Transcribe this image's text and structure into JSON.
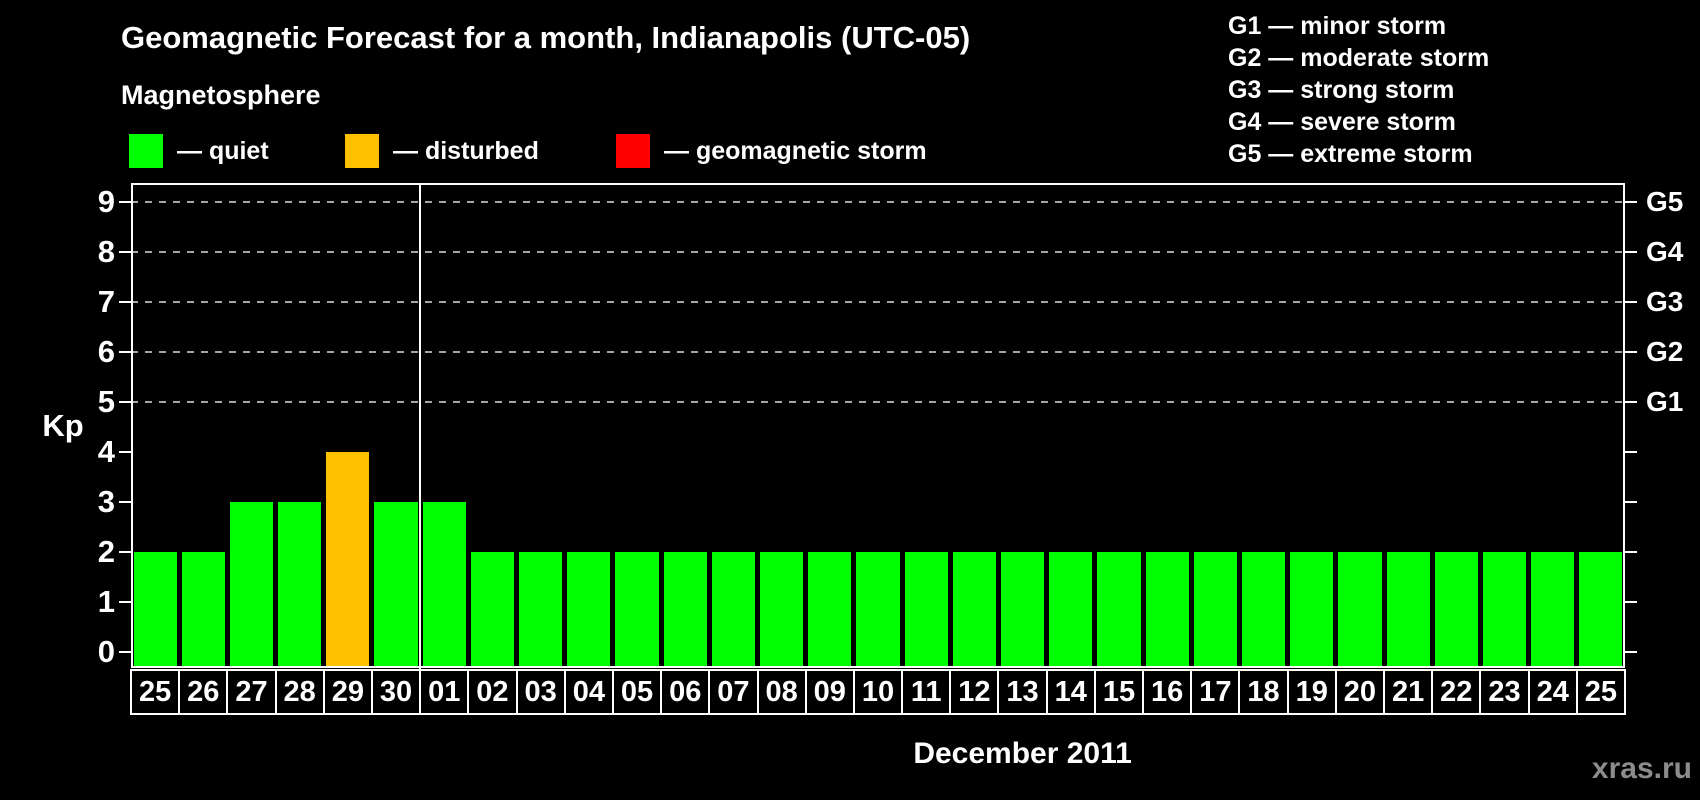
{
  "header": {
    "title": "Geomagnetic Forecast for a month, Indianapolis (UTC-05)",
    "subtitle": "Magnetosphere"
  },
  "legend": {
    "items": [
      {
        "key": "quiet",
        "label": "— quiet",
        "color": "#00ff00"
      },
      {
        "key": "disturbed",
        "label": "— disturbed",
        "color": "#ffc000"
      },
      {
        "key": "storm",
        "label": "— geomagnetic storm",
        "color": "#ff0000"
      }
    ]
  },
  "g_legend": {
    "lines": [
      "G1 — minor storm",
      "G2 — moderate storm",
      "G3 — strong storm",
      "G4 — severe storm",
      "G5 — extreme storm"
    ]
  },
  "colors": {
    "quiet": "#00ff00",
    "disturbed": "#ffc000",
    "storm": "#ff0000",
    "grid": "#a5a5a5",
    "axis": "#ffffff",
    "watermark": "#8c8c8c"
  },
  "watermark": "xras.ru",
  "chart_data": {
    "type": "bar",
    "title": "Geomagnetic Forecast for a month, Indianapolis (UTC-05)",
    "ylabel": "Kp",
    "xlabel": "December 2011",
    "ylim": [
      0,
      9
    ],
    "yticks": [
      0,
      1,
      2,
      3,
      4,
      5,
      6,
      7,
      8,
      9
    ],
    "gridlines_at": [
      5,
      6,
      7,
      8,
      9
    ],
    "grid": "dashed",
    "right_axis": [
      {
        "kp": 5,
        "label": "G1"
      },
      {
        "kp": 6,
        "label": "G2"
      },
      {
        "kp": 7,
        "label": "G3"
      },
      {
        "kp": 8,
        "label": "G4"
      },
      {
        "kp": 9,
        "label": "G5"
      }
    ],
    "categories": [
      "25",
      "26",
      "27",
      "28",
      "29",
      "30",
      "01",
      "02",
      "03",
      "04",
      "05",
      "06",
      "07",
      "08",
      "09",
      "10",
      "11",
      "12",
      "13",
      "14",
      "15",
      "16",
      "17",
      "18",
      "19",
      "20",
      "21",
      "22",
      "23",
      "24",
      "25"
    ],
    "values": [
      2,
      2,
      3,
      3,
      4,
      3,
      3,
      2,
      2,
      2,
      2,
      2,
      2,
      2,
      2,
      2,
      2,
      2,
      2,
      2,
      2,
      2,
      2,
      2,
      2,
      2,
      2,
      2,
      2,
      2,
      2
    ],
    "color_thresholds": {
      "disturbed_at": 4,
      "storm_at": 5
    },
    "month_boundary_after_index": 5,
    "legend_position": "top"
  }
}
